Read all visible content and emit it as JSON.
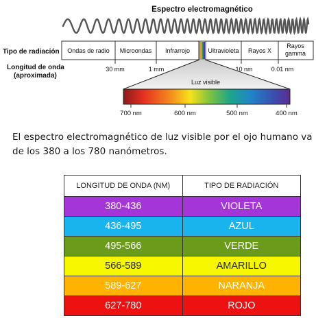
{
  "diagram": {
    "title": "Espectro electromagnético",
    "row_label": "Tipo de radiación",
    "wavelength_label_line1": "Longitud de onda",
    "wavelength_label_line2": "(aproximada)",
    "bands": [
      "Ondas de radio",
      "Microondas",
      "Infrarrojo",
      "Ultravioleta",
      "Rayos X",
      "Rayos gamma"
    ],
    "wavelength_ticks": [
      "30 mm",
      "1 mm",
      "10 nm",
      "0.01 nm"
    ],
    "visible_label": "Luz visible",
    "visible_ticks": [
      "700 nm",
      "600 nm",
      "500 nm",
      "400 nm"
    ]
  },
  "caption": "El espectro electromagnético de luz visible por el ojo humano va de los 380 a los 780 nanómetros.",
  "table": {
    "headers": [
      "LONGITUD DE ONDA (NM)",
      "TIPO DE RADIACIÓN"
    ],
    "rows": [
      {
        "range": "380-436",
        "type": "VIOLETA",
        "color": "#a435d8",
        "text_color": "#ffffff"
      },
      {
        "range": "436-495",
        "type": "AZUL",
        "color": "#19b4ee",
        "text_color": "#ffffff"
      },
      {
        "range": "495-566",
        "type": "VERDE",
        "color": "#6a9b1a",
        "text_color": "#ffffff"
      },
      {
        "range": "566-589",
        "type": "AMARILLO",
        "color": "#f7f700",
        "text_color": "#222222"
      },
      {
        "range": "589-627",
        "type": "NARANJA",
        "color": "#ffb300",
        "text_color": "#ffffff"
      },
      {
        "range": "627-780",
        "type": "ROJO",
        "color": "#ee1111",
        "text_color": "#ffffff"
      }
    ]
  }
}
